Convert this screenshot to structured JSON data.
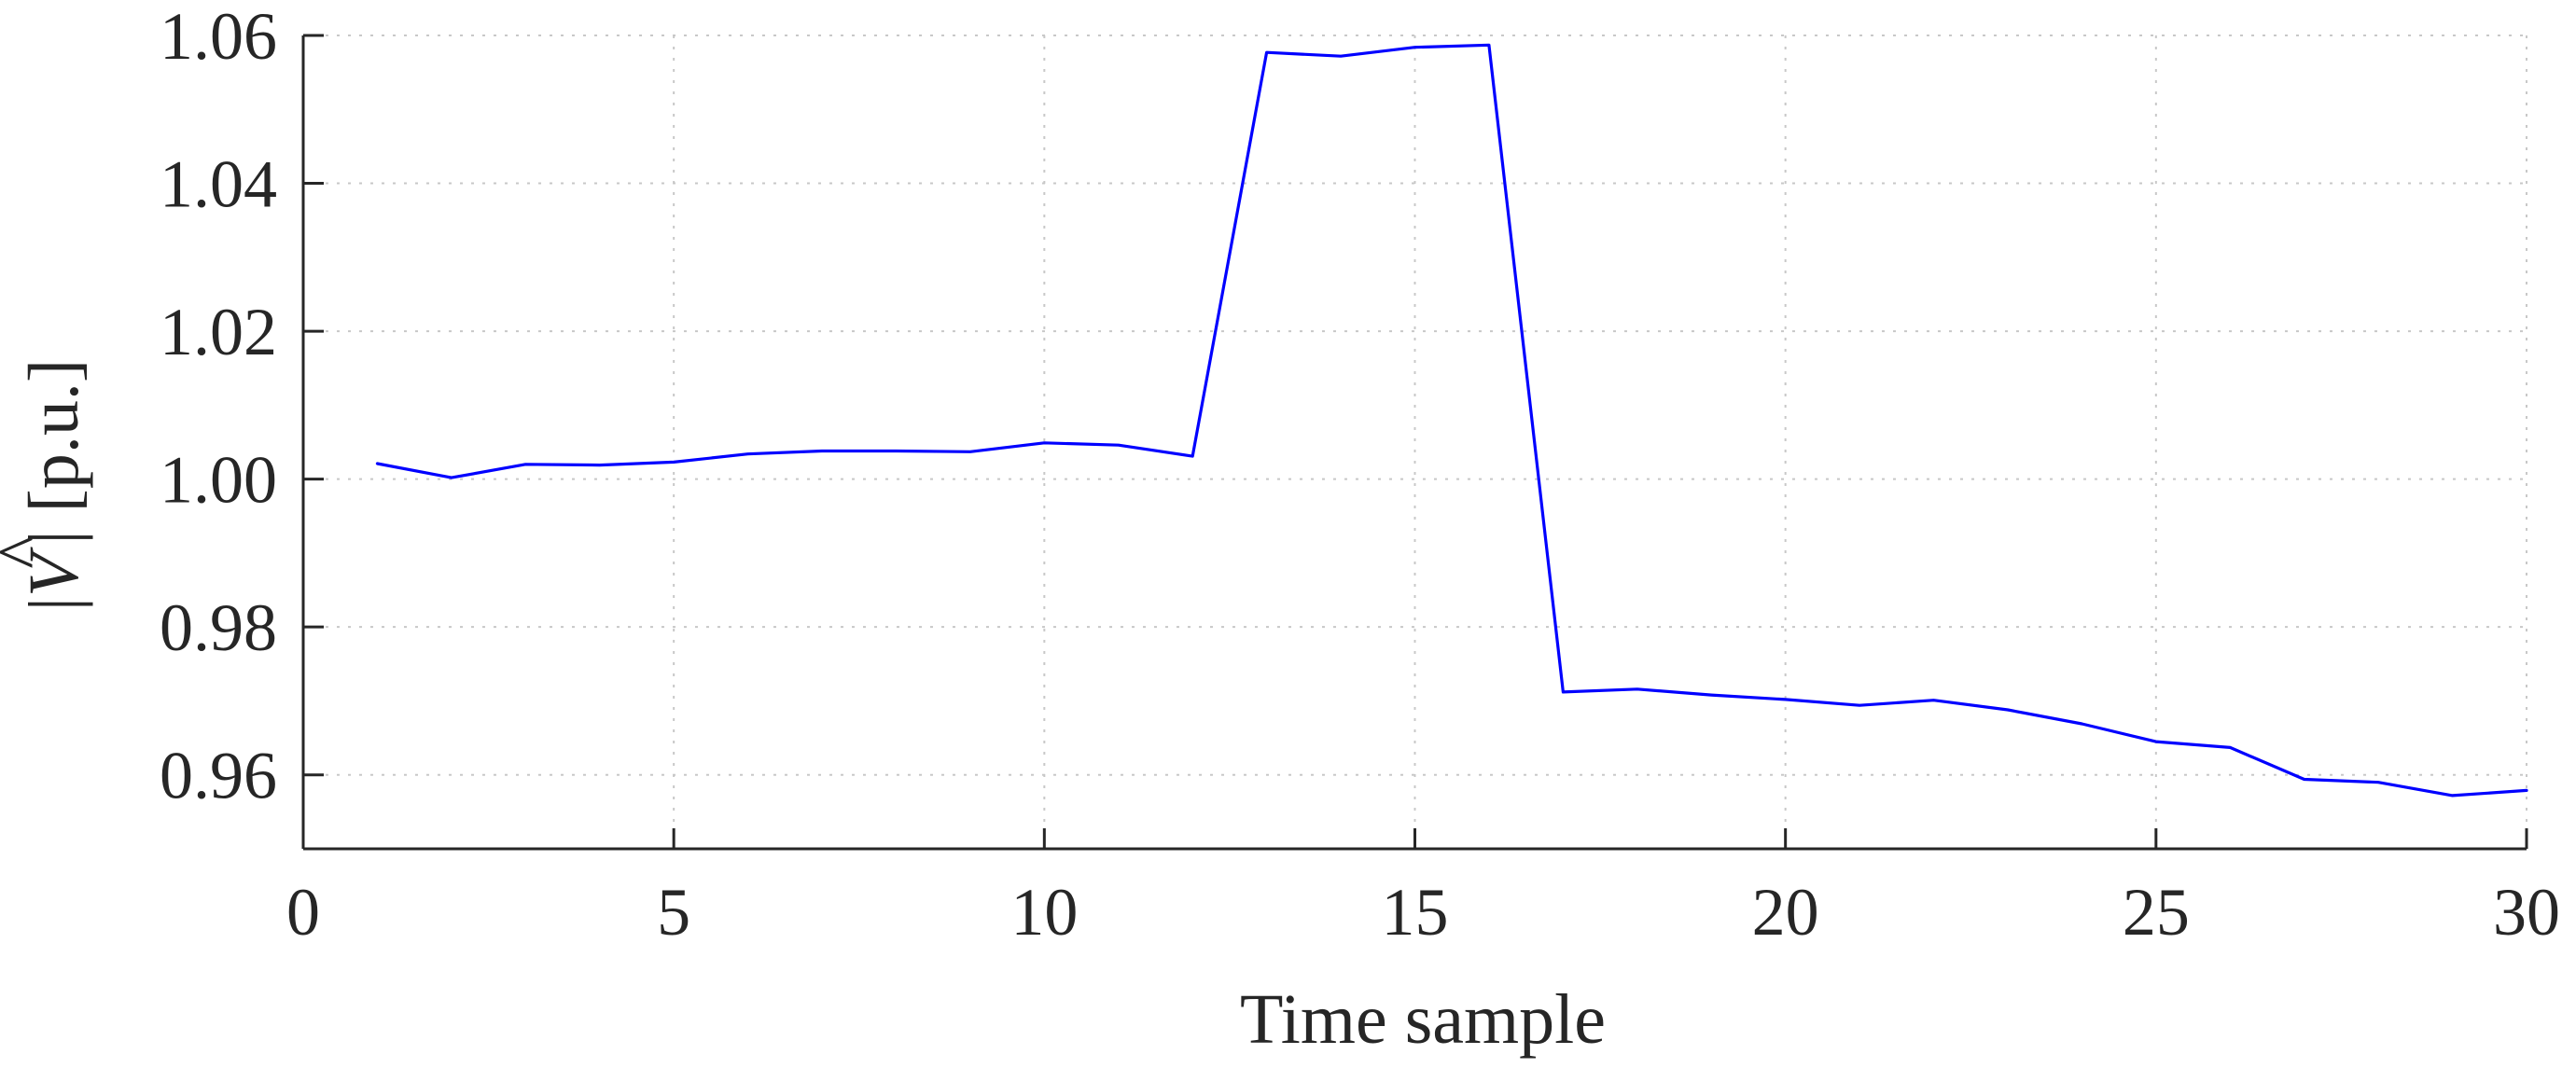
{
  "chart_data": {
    "type": "line",
    "title": "",
    "xlabel": "Time sample",
    "ylabel": {
      "prefix": "|",
      "symbol": "V",
      "accent": "^",
      "suffix": "| [p.u.]"
    },
    "xlim": [
      0,
      30
    ],
    "ylim": [
      0.95,
      1.06
    ],
    "xticks": [
      0,
      5,
      10,
      15,
      20,
      25,
      30
    ],
    "xtick_labels": [
      "0",
      "5",
      "10",
      "15",
      "20",
      "25",
      "30"
    ],
    "yticks": [
      0.96,
      0.98,
      1.0,
      1.02,
      1.04,
      1.06
    ],
    "ytick_labels": [
      "0.96",
      "0.98",
      "1.00",
      "1.02",
      "1.04",
      "1.06"
    ],
    "grid": true,
    "grid_style": "dotted",
    "legend": "none",
    "series": [
      {
        "color": "#0000ff",
        "x": [
          1,
          2,
          3,
          4,
          5,
          6,
          7,
          8,
          9,
          10,
          11,
          12,
          13,
          14,
          15,
          16,
          17,
          18,
          19,
          20,
          21,
          22,
          23,
          24,
          25,
          26,
          27,
          28,
          29,
          30
        ],
        "y": [
          1.0021,
          1.0002,
          1.002,
          1.0019,
          1.0023,
          1.0034,
          1.0038,
          1.0038,
          1.0037,
          1.0049,
          1.0046,
          1.0031,
          1.0577,
          1.0572,
          1.0584,
          1.0587,
          0.9712,
          0.9716,
          0.9708,
          0.9702,
          0.9694,
          0.9701,
          0.9688,
          0.9669,
          0.9645,
          0.9637,
          0.9594,
          0.959,
          0.9572,
          0.9579
        ]
      }
    ]
  }
}
